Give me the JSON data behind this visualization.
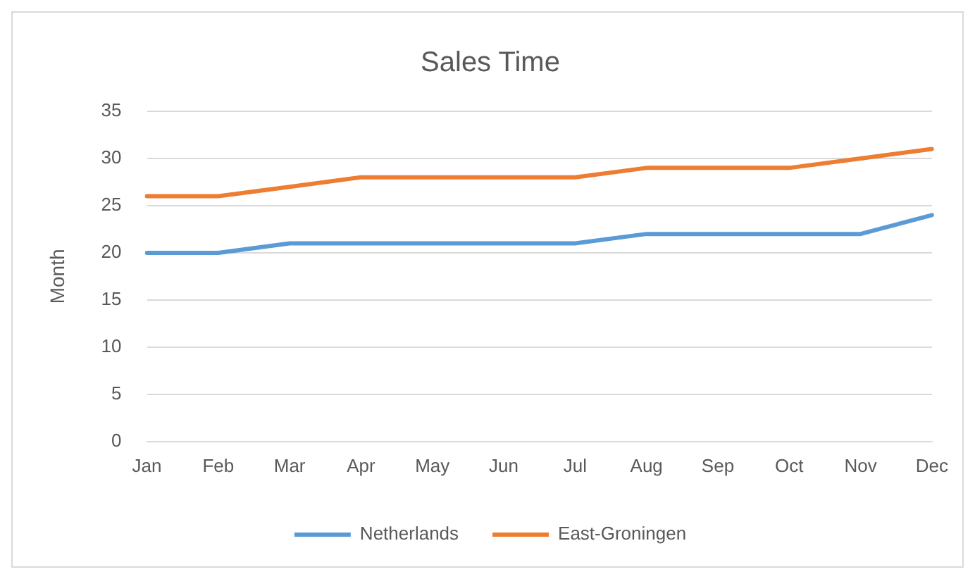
{
  "chart_data": {
    "type": "line",
    "title": "Sales Time",
    "ylabel": "Month",
    "categories": [
      "Jan",
      "Feb",
      "Mar",
      "Apr",
      "May",
      "Jun",
      "Jul",
      "Aug",
      "Sep",
      "Oct",
      "Nov",
      "Dec"
    ],
    "series": [
      {
        "name": "Netherlands",
        "color": "#5b9bd5",
        "values": [
          20,
          20,
          21,
          21,
          21,
          21,
          21,
          22,
          22,
          22,
          22,
          24
        ]
      },
      {
        "name": "East-Groningen",
        "color": "#ed7d31",
        "values": [
          26,
          26,
          27,
          28,
          28,
          28,
          28,
          29,
          29,
          29,
          30,
          31
        ]
      }
    ],
    "ylim": [
      0,
      35
    ],
    "yticks": [
      0,
      5,
      10,
      15,
      20,
      25,
      30,
      35
    ],
    "grid": "y",
    "legend": "bottom",
    "marker": "none",
    "line_style": "solid"
  }
}
